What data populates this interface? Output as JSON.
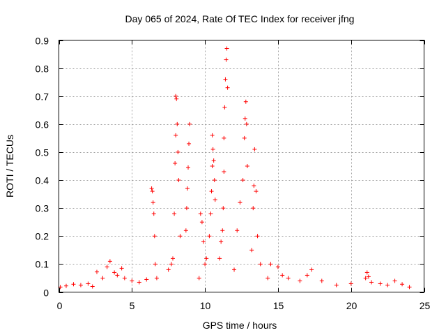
{
  "chart_data": {
    "type": "scatter",
    "title": "Day 065 of 2024, Rate Of TEC Index for receiver jfng",
    "xlabel": "GPS time / hours",
    "ylabel": "ROTI / TECUs",
    "xlim": [
      0,
      25
    ],
    "ylim": [
      0,
      0.9
    ],
    "xticks": [
      "0",
      "5",
      "10",
      "15",
      "20",
      "25"
    ],
    "yticks": [
      "0",
      "0.1",
      "0.2",
      "0.3",
      "0.4",
      "0.5",
      "0.6",
      "0.7",
      "0.8",
      "0.9"
    ],
    "grid": true,
    "marker": "plus",
    "color": "#ff0000",
    "series": [
      {
        "x": [
          0.1,
          0.5,
          1.0,
          1.5,
          2.0,
          2.3,
          2.6,
          3.0,
          3.3,
          3.5,
          3.8,
          4.0,
          4.3,
          4.5,
          5.0,
          5.5,
          6.0,
          6.35,
          6.4,
          6.45,
          6.5,
          6.55,
          6.6,
          6.7,
          7.5,
          7.7,
          7.8,
          7.9,
          7.95,
          8.0,
          8.0,
          8.05,
          8.1,
          8.15,
          8.2,
          8.3,
          8.7,
          8.75,
          8.8,
          8.85,
          8.9,
          8.95,
          9.6,
          9.7,
          9.8,
          9.9,
          10.0,
          10.1,
          10.3,
          10.4,
          10.45,
          10.5,
          10.5,
          10.55,
          10.6,
          10.65,
          10.7,
          11.0,
          11.1,
          11.2,
          11.25,
          11.3,
          11.3,
          11.35,
          11.4,
          11.45,
          11.5,
          11.55,
          12.0,
          12.2,
          12.4,
          12.6,
          12.7,
          12.75,
          12.8,
          12.85,
          12.9,
          13.2,
          13.3,
          13.35,
          13.4,
          13.5,
          13.6,
          13.8,
          14.3,
          14.5,
          15.0,
          15.3,
          15.7,
          16.5,
          17.0,
          17.3,
          18.0,
          19.0,
          20.0,
          21.0,
          21.1,
          21.2,
          21.4,
          22.0,
          22.5,
          23.0,
          23.5,
          24.0
        ],
        "y": [
          0.018,
          0.022,
          0.028,
          0.025,
          0.03,
          0.02,
          0.072,
          0.05,
          0.09,
          0.11,
          0.07,
          0.06,
          0.085,
          0.05,
          0.04,
          0.035,
          0.045,
          0.37,
          0.36,
          0.32,
          0.28,
          0.2,
          0.1,
          0.05,
          0.08,
          0.1,
          0.12,
          0.28,
          0.46,
          0.56,
          0.7,
          0.69,
          0.6,
          0.5,
          0.4,
          0.2,
          0.22,
          0.3,
          0.37,
          0.445,
          0.53,
          0.6,
          0.05,
          0.28,
          0.25,
          0.18,
          0.1,
          0.12,
          0.2,
          0.28,
          0.36,
          0.45,
          0.56,
          0.51,
          0.47,
          0.4,
          0.33,
          0.12,
          0.18,
          0.22,
          0.3,
          0.43,
          0.55,
          0.66,
          0.76,
          0.83,
          0.87,
          0.73,
          0.08,
          0.22,
          0.32,
          0.4,
          0.55,
          0.62,
          0.68,
          0.6,
          0.45,
          0.15,
          0.3,
          0.38,
          0.51,
          0.36,
          0.2,
          0.1,
          0.05,
          0.1,
          0.09,
          0.06,
          0.05,
          0.04,
          0.06,
          0.08,
          0.04,
          0.025,
          0.03,
          0.05,
          0.07,
          0.055,
          0.035,
          0.03,
          0.025,
          0.04,
          0.028,
          0.018
        ]
      }
    ]
  }
}
